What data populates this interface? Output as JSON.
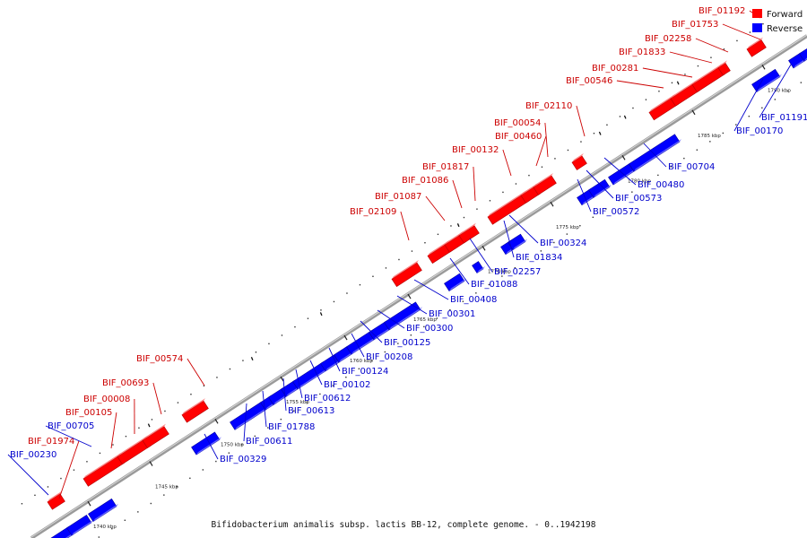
{
  "legend": [
    {
      "label": "Forward",
      "color": "#ff0000"
    },
    {
      "label": "Reverse",
      "color": "#0000ff"
    }
  ],
  "caption": "Bifidobacterium animalis subsp. lactis BB-12, complete genome. - 0..1942198",
  "colors": {
    "forward": "#ff0000",
    "reverse": "#0000ff",
    "axis": "#888888"
  },
  "ticks": [
    "1740 kbp",
    "1745 kbp",
    "1750 kbp",
    "1755 kbp",
    "1760 kbp",
    "1765 kbp",
    "1770 kbp",
    "1775 kbp",
    "1780 kbp",
    "1785 kbp",
    "1790 kbp"
  ],
  "genes_forward": [
    "BIF_01192",
    "BIF_01753",
    "BIF_02258",
    "BIF_01833",
    "BIF_00281",
    "BIF_00546",
    "BIF_02110",
    "BIF_00054",
    "BIF_00460",
    "BIF_00132",
    "BIF_01817",
    "BIF_01086",
    "BIF_01087",
    "BIF_02109",
    "BIF_00574",
    "BIF_00693",
    "BIF_00008",
    "BIF_00105",
    "BIF_01974"
  ],
  "genes_reverse": [
    "BIF_00705",
    "BIF_00230",
    "BIF_00329",
    "BIF_00611",
    "BIF_01788",
    "BIF_00613",
    "BIF_00612",
    "BIF_00102",
    "BIF_00124",
    "BIF_00208",
    "BIF_00125",
    "BIF_00300",
    "BIF_00301",
    "BIF_00408",
    "BIF_01088",
    "BIF_02257",
    "BIF_01834",
    "BIF_00324",
    "BIF_00572",
    "BIF_00573",
    "BIF_00480",
    "BIF_00704",
    "BIF_00170",
    "BIF_01191"
  ]
}
